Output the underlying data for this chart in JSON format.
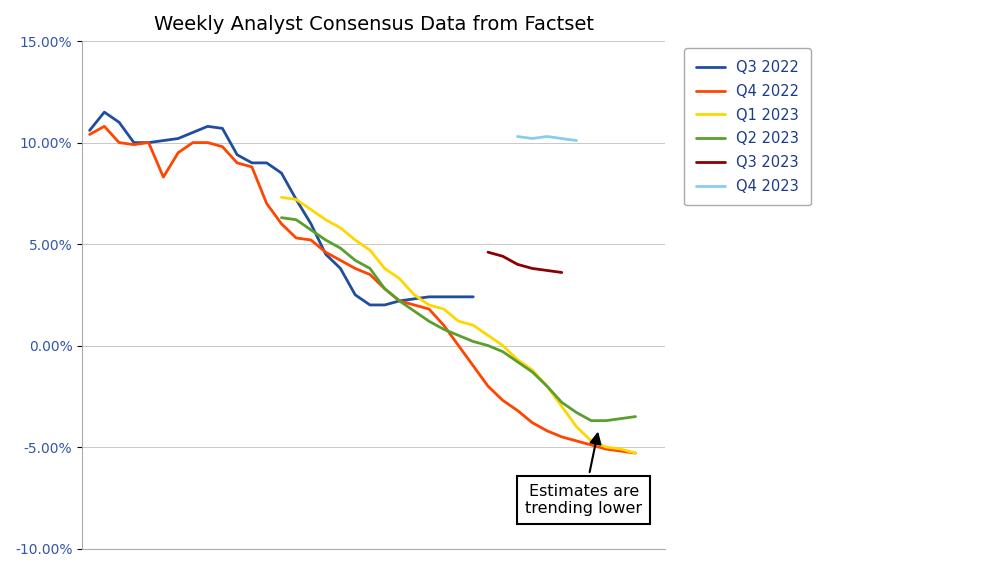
{
  "title": "Weekly Analyst Consensus Data from Factset",
  "ylim": [
    -0.1,
    0.15
  ],
  "yticks": [
    -0.1,
    -0.05,
    0.0,
    0.05,
    0.1,
    0.15
  ],
  "ytick_labels": [
    "-10.00%",
    "-5.00%",
    "0.00%",
    "5.00%",
    "10.00%",
    "15.00%"
  ],
  "legend_labels": [
    "Q3 2022",
    "Q4 2022",
    "Q1 2023",
    "Q2 2023",
    "Q3 2023",
    "Q4 2023"
  ],
  "line_colors": [
    "#1f4e9f",
    "#ff4500",
    "#ffd700",
    "#5a9f2e",
    "#8b0000",
    "#87ceeb"
  ],
  "annotation_text": "Estimates are\ntrending lower",
  "series": {
    "Q3_2022": {
      "x": [
        0,
        1,
        2,
        3,
        4,
        5,
        6,
        7,
        8,
        9,
        10,
        11,
        12,
        13,
        14,
        15,
        16,
        17,
        18,
        19,
        20,
        21,
        22,
        23,
        24,
        25,
        26
      ],
      "y": [
        0.106,
        0.115,
        0.11,
        0.1,
        0.1,
        0.101,
        0.102,
        0.105,
        0.108,
        0.107,
        0.094,
        0.09,
        0.09,
        0.085,
        0.072,
        0.06,
        0.045,
        0.038,
        0.025,
        0.02,
        0.02,
        0.022,
        0.023,
        0.024,
        0.024,
        0.024,
        0.024
      ]
    },
    "Q4_2022": {
      "x": [
        0,
        1,
        2,
        3,
        4,
        5,
        6,
        7,
        8,
        9,
        10,
        11,
        12,
        13,
        14,
        15,
        16,
        17,
        18,
        19,
        20,
        21,
        22,
        23,
        24,
        25,
        26,
        27,
        28,
        29,
        30,
        31,
        32,
        33,
        34,
        35,
        36,
        37
      ],
      "y": [
        0.104,
        0.108,
        0.1,
        0.099,
        0.1,
        0.083,
        0.095,
        0.1,
        0.1,
        0.098,
        0.09,
        0.088,
        0.07,
        0.06,
        0.053,
        0.052,
        0.046,
        0.042,
        0.038,
        0.035,
        0.028,
        0.022,
        0.02,
        0.018,
        0.01,
        0.0,
        -0.01,
        -0.02,
        -0.027,
        -0.032,
        -0.038,
        -0.042,
        -0.045,
        -0.047,
        -0.049,
        -0.051,
        -0.052,
        -0.053
      ]
    },
    "Q1_2023": {
      "x": [
        13,
        14,
        15,
        16,
        17,
        18,
        19,
        20,
        21,
        22,
        23,
        24,
        25,
        26,
        27,
        28,
        29,
        30,
        31,
        32,
        33,
        34,
        35,
        36,
        37
      ],
      "y": [
        0.073,
        0.072,
        0.067,
        0.062,
        0.058,
        0.052,
        0.047,
        0.038,
        0.033,
        0.025,
        0.02,
        0.018,
        0.012,
        0.01,
        0.005,
        0.0,
        -0.007,
        -0.012,
        -0.02,
        -0.03,
        -0.04,
        -0.047,
        -0.05,
        -0.051,
        -0.053
      ]
    },
    "Q2_2023": {
      "x": [
        13,
        14,
        15,
        16,
        17,
        18,
        19,
        20,
        21,
        22,
        23,
        24,
        25,
        26,
        27,
        28,
        29,
        30,
        31,
        32,
        33,
        34,
        35,
        36,
        37
      ],
      "y": [
        0.063,
        0.062,
        0.057,
        0.052,
        0.048,
        0.042,
        0.038,
        0.028,
        0.022,
        0.017,
        0.012,
        0.008,
        0.005,
        0.002,
        0.0,
        -0.003,
        -0.008,
        -0.013,
        -0.02,
        -0.028,
        -0.033,
        -0.037,
        -0.037,
        -0.036,
        -0.035
      ]
    },
    "Q3_2023": {
      "x": [
        27,
        28,
        29,
        30,
        31,
        32
      ],
      "y": [
        0.046,
        0.044,
        0.04,
        0.038,
        0.037,
        0.036
      ]
    },
    "Q4_2023": {
      "x": [
        29,
        30,
        31,
        32,
        33
      ],
      "y": [
        0.103,
        0.102,
        0.103,
        0.102,
        0.101
      ]
    }
  }
}
